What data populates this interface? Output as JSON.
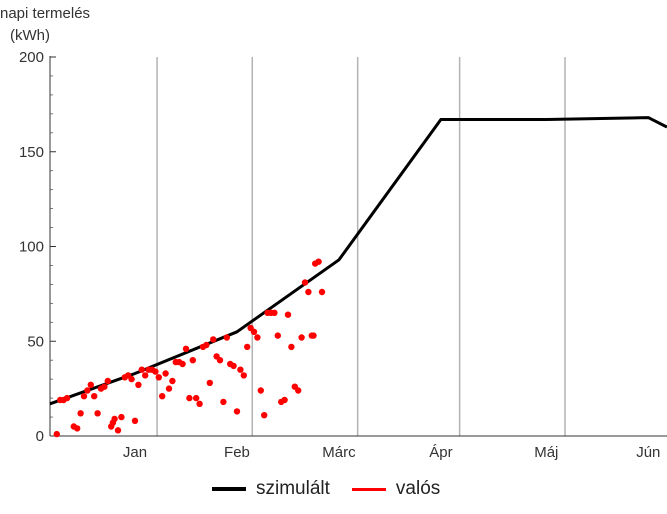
{
  "chart_data": {
    "type": "line",
    "ylabel_line1": "napi termelés",
    "ylabel_line2": "(kWh)",
    "ylim": [
      0,
      200
    ],
    "y_ticks": [
      0,
      50,
      100,
      150,
      200
    ],
    "xlim_days": [
      -10,
      171.5
    ],
    "month_labels": [
      {
        "label": "Jan",
        "x": 15
      },
      {
        "label": "Feb",
        "x": 45
      },
      {
        "label": "Márc",
        "x": 75
      },
      {
        "label": "Ápr",
        "x": 105
      },
      {
        "label": "Máj",
        "x": 136
      },
      {
        "label": "Jún",
        "x": 166
      }
    ],
    "month_boundaries": [
      21.5,
      49.5,
      80.5,
      110.5,
      141.5
    ],
    "grid": "vertical month separators",
    "legend_position": "bottom",
    "series": [
      {
        "name": "szimulált",
        "color": "#000000",
        "style": "line",
        "points": [
          [
            -10,
            17
          ],
          [
            15,
            33
          ],
          [
            45,
            55
          ],
          [
            75,
            93
          ],
          [
            105,
            167
          ],
          [
            136,
            167
          ],
          [
            166,
            168
          ],
          [
            171.5,
            163
          ]
        ]
      },
      {
        "name": "valós",
        "color": "#ff0000",
        "style": "scatter",
        "points": [
          [
            -8,
            1
          ],
          [
            -7,
            19
          ],
          [
            -6,
            19
          ],
          [
            -5,
            20
          ],
          [
            -3,
            5
          ],
          [
            -2,
            4
          ],
          [
            -1,
            12
          ],
          [
            0,
            21
          ],
          [
            1,
            24
          ],
          [
            2,
            27
          ],
          [
            3,
            21
          ],
          [
            4,
            12
          ],
          [
            5,
            25
          ],
          [
            6,
            26
          ],
          [
            7,
            29
          ],
          [
            8,
            5
          ],
          [
            8.5,
            7
          ],
          [
            9,
            9
          ],
          [
            10,
            3
          ],
          [
            11,
            10
          ],
          [
            12,
            31
          ],
          [
            13,
            32
          ],
          [
            14,
            30
          ],
          [
            15,
            8
          ],
          [
            16,
            27
          ],
          [
            17,
            35
          ],
          [
            18,
            32
          ],
          [
            19,
            35
          ],
          [
            20,
            35
          ],
          [
            21,
            34
          ],
          [
            22,
            31
          ],
          [
            23,
            21
          ],
          [
            24,
            33
          ],
          [
            25,
            25
          ],
          [
            26,
            29
          ],
          [
            27,
            39
          ],
          [
            28,
            39
          ],
          [
            29,
            38
          ],
          [
            30,
            46
          ],
          [
            31,
            20
          ],
          [
            32,
            40
          ],
          [
            33,
            20
          ],
          [
            34,
            17
          ],
          [
            35,
            47
          ],
          [
            36,
            48
          ],
          [
            37,
            28
          ],
          [
            38,
            51
          ],
          [
            39,
            42
          ],
          [
            40,
            40
          ],
          [
            41,
            18
          ],
          [
            42,
            52
          ],
          [
            43,
            38
          ],
          [
            44,
            37
          ],
          [
            45,
            13
          ],
          [
            46,
            35
          ],
          [
            47,
            32
          ],
          [
            48,
            47
          ],
          [
            49,
            57
          ],
          [
            50,
            55
          ],
          [
            51,
            52
          ],
          [
            52,
            24
          ],
          [
            53,
            11
          ],
          [
            54,
            65
          ],
          [
            55,
            65
          ],
          [
            56,
            65
          ],
          [
            57,
            53
          ],
          [
            58,
            18
          ],
          [
            59,
            19
          ],
          [
            60,
            64
          ],
          [
            61,
            47
          ],
          [
            62,
            26
          ],
          [
            63,
            24
          ],
          [
            64,
            52
          ],
          [
            65,
            81
          ],
          [
            66,
            76
          ],
          [
            67,
            53
          ],
          [
            67.5,
            53
          ],
          [
            68,
            91
          ],
          [
            69,
            92
          ],
          [
            70,
            76
          ]
        ]
      }
    ]
  }
}
